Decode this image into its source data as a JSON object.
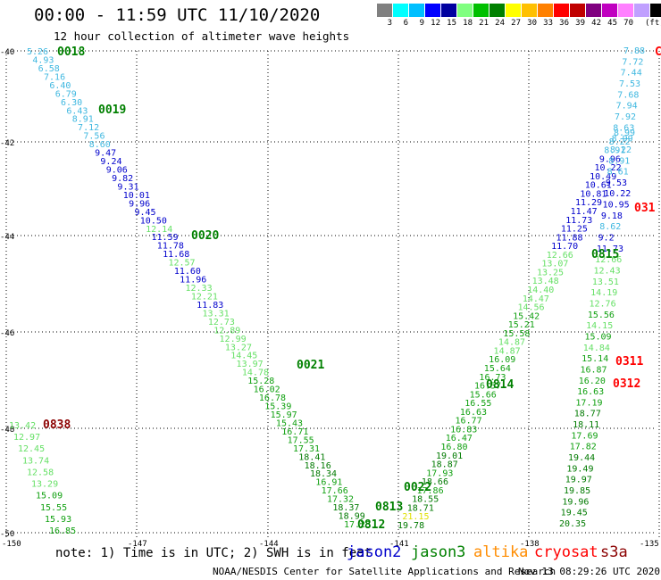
{
  "title": "00:00 - 11:59 UTC 11/10/2020",
  "subtitle": "12 hour collection of altimeter wave heights",
  "colorbar": {
    "colors": [
      "#808080",
      "#00ffff",
      "#00bfff",
      "#0000ff",
      "#0000a0",
      "#80ff80",
      "#00c000",
      "#008000",
      "#ffff00",
      "#ffc000",
      "#ff8000",
      "#ff0000",
      "#c00000",
      "#800080",
      "#c000c0",
      "#ff80ff",
      "#c0a0ff",
      "#000000"
    ],
    "labels": [
      "3",
      "6",
      "9",
      "12",
      "15",
      "18",
      "21",
      "24",
      "27",
      "30",
      "33",
      "36",
      "39",
      "42",
      "45",
      "70"
    ],
    "unit": "(ft)"
  },
  "axes": {
    "lat_labels": [
      "-40",
      "-42",
      "-44",
      "-46",
      "-48",
      "-50"
    ],
    "lon_labels": [
      "-150",
      "-147",
      "-144",
      "-141",
      "-138",
      "-135"
    ]
  },
  "note": "note: 1) Time is in UTC; 2) SWH is in feet",
  "legend": [
    {
      "label": "jason2",
      "color": "#0000cc"
    },
    {
      "label": "jason3",
      "color": "#008000"
    },
    {
      "label": "altika",
      "color": "#ff8c00"
    },
    {
      "label": "cryosat",
      "color": "#ff0000"
    },
    {
      "label": "s3a",
      "color": "#8b0000"
    }
  ],
  "footer": "NOAA/NESDIS Center for Satellite Applications and Research",
  "footer_time": "Nov 13 08:29:26 UTC 2020",
  "time_labels": [
    {
      "text": "0018",
      "color": "#008000"
    },
    {
      "text": "0019",
      "color": "#008000"
    },
    {
      "text": "0020",
      "color": "#008000"
    },
    {
      "text": "0021",
      "color": "#008000"
    },
    {
      "text": "0022",
      "color": "#008000"
    },
    {
      "text": "0815",
      "color": "#008000"
    },
    {
      "text": "0814",
      "color": "#008000"
    },
    {
      "text": "0813",
      "color": "#008000"
    },
    {
      "text": "0812",
      "color": "#008000"
    },
    {
      "text": "0838",
      "color": "#8b0000"
    },
    {
      "text": "031",
      "color": "#ff0000"
    },
    {
      "text": "0311",
      "color": "#ff0000"
    },
    {
      "text": "0312",
      "color": "#ff0000"
    },
    {
      "text": "C",
      "color": "#ff0000"
    }
  ],
  "tracks": [
    {
      "name": "left-descending-track",
      "values": [
        "5.26",
        "4.93",
        "6.58",
        "7.16",
        "6.40",
        "6.79",
        "6.30",
        "6.43",
        "8.91",
        "7.12",
        "7.56",
        "8.60",
        "9.47",
        "9.24",
        "9.06",
        "9.82",
        "9.31",
        "10.01",
        "9.96",
        "9.45",
        "10.50",
        "12.14",
        "11.59",
        "11.78",
        "11.68",
        "12.57",
        "11.60",
        "11.96",
        "12.33",
        "12.21",
        "11.83",
        "13.31",
        "12.73",
        "12.89",
        "12.99",
        "13.27",
        "14.45",
        "13.97",
        "14.78",
        "15.28",
        "16.02",
        "16.78",
        "15.39",
        "15.97",
        "15.43",
        "16.71",
        "17.55",
        "17.31",
        "18.41",
        "18.16",
        "18.34",
        "16.91",
        "17.66",
        "17.32",
        "18.37",
        "18.99",
        "17.23"
      ]
    },
    {
      "name": "right-ascending-track",
      "values": [
        "19.78",
        "21.15",
        "18.71",
        "18.55",
        "17.86",
        "18.66",
        "17.93",
        "18.87",
        "19.01",
        "16.80",
        "16.47",
        "16.83",
        "16.77",
        "16.63",
        "16.55",
        "15.66",
        "16.57",
        "16.73",
        "15.64",
        "16.09",
        "14.87",
        "14.87",
        "15.58",
        "15.21",
        "15.42",
        "14.56",
        "14.47",
        "14.40",
        "13.48",
        "13.25",
        "13.07",
        "12.66",
        "11.70",
        "11.88",
        "11.25",
        "11.73",
        "11.47",
        "11.29",
        "10.81",
        "10.61",
        "10.49",
        "10.22",
        "9.96",
        "8.91",
        "8.22",
        "8.99"
      ]
    },
    {
      "name": "far-right-track",
      "values": [
        "7.88",
        "7.72",
        "7.44",
        "7.53",
        "7.68",
        "7.94",
        "7.92",
        "8.63",
        "8.99",
        "8.22",
        "8.91",
        "8.61",
        "9.53",
        "10.22",
        "10.95",
        "9.18",
        "8.62",
        "9.2",
        "11.73",
        "12.66",
        "12.43",
        "13.51",
        "14.19",
        "12.76",
        "15.56",
        "14.15",
        "15.09",
        "14.84",
        "15.14",
        "16.87",
        "16.20",
        "16.63",
        "17.19",
        "18.77",
        "18.11",
        "17.69",
        "17.82",
        "19.44",
        "19.49",
        "19.97",
        "19.85",
        "19.96",
        "19.45",
        "20.35"
      ]
    },
    {
      "name": "far-left-track",
      "values": [
        "13.42",
        "12.97",
        "12.45",
        "13.74",
        "12.58",
        "13.29",
        "15.09",
        "15.55",
        "15.93",
        "16.85"
      ]
    }
  ]
}
